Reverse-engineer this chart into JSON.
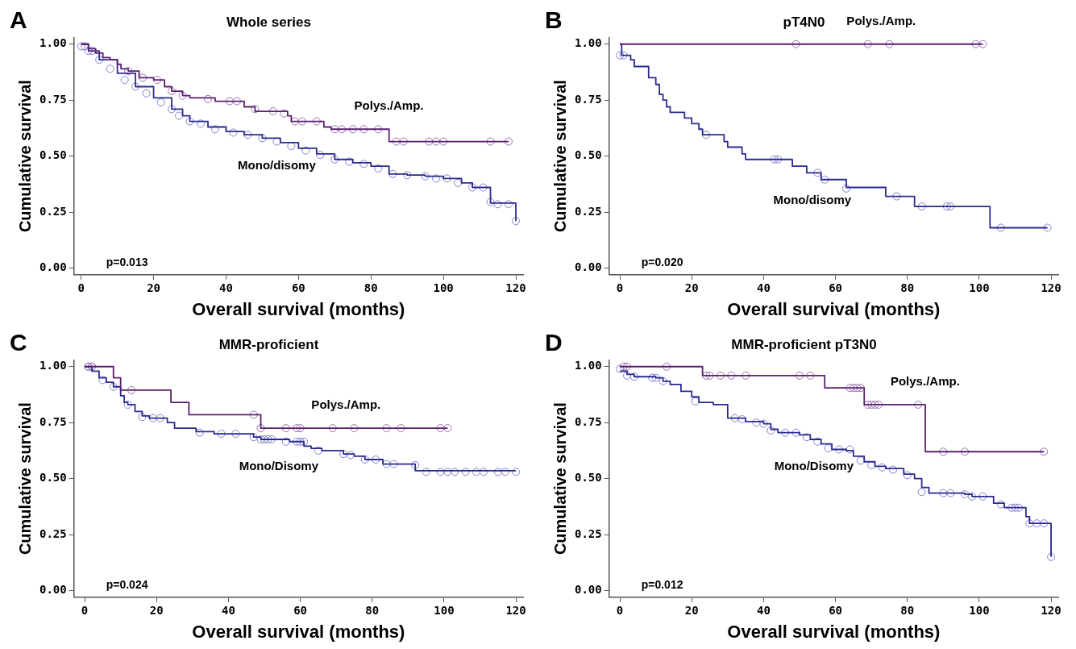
{
  "chart_data": [
    {
      "type": "step",
      "title": "Whole series",
      "xlabel": "Overall survival (months)",
      "ylabel": "Cumulative survival",
      "xlim": [
        -2,
        122
      ],
      "xticks": [
        0,
        20,
        40,
        60,
        80,
        100,
        120
      ],
      "ylim": [
        -0.03,
        1.03
      ],
      "yticks": [
        {
          "value": 0,
          "label": "0.00"
        },
        {
          "value": 0.25,
          "label": "0.25"
        },
        {
          "value": 0.5,
          "label": "0.50"
        },
        {
          "value": 0.75,
          "label": "0.75"
        },
        {
          "value": 1,
          "label": "1.00"
        }
      ],
      "grid": false,
      "legend": false,
      "marker": "none",
      "line_style": "solid",
      "annotations": [
        "A",
        "p=0.013"
      ],
      "series": [
        {
          "name": "Polys./Amp.",
          "color": "#5a2070",
          "x": [
            0,
            2,
            4,
            6,
            8,
            10,
            11,
            13,
            16,
            20,
            23,
            25,
            28,
            30,
            37,
            45,
            48,
            57,
            58,
            67,
            69,
            85,
            118
          ],
          "values": [
            1,
            0.98,
            0.96,
            0.94,
            0.93,
            0.91,
            0.89,
            0.88,
            0.85,
            0.84,
            0.81,
            0.79,
            0.77,
            0.76,
            0.745,
            0.72,
            0.7,
            0.68,
            0.655,
            0.63,
            0.62,
            0.565,
            0.565
          ]
        },
        {
          "name": "Mono/disomy",
          "color": "#2a2a90",
          "x": [
            0,
            2,
            5,
            10,
            15,
            20,
            25,
            28,
            30,
            35,
            40,
            45,
            50,
            55,
            60,
            65,
            70,
            75,
            80,
            85,
            90,
            95,
            100,
            105,
            108,
            113,
            120
          ],
          "values": [
            1,
            0.97,
            0.93,
            0.87,
            0.81,
            0.76,
            0.71,
            0.68,
            0.655,
            0.63,
            0.61,
            0.595,
            0.58,
            0.56,
            0.535,
            0.51,
            0.485,
            0.47,
            0.455,
            0.42,
            0.415,
            0.41,
            0.4,
            0.38,
            0.36,
            0.29,
            0.21
          ]
        },
        {
          "type": "scatter",
          "marker": "circle",
          "color": "#9a70b0",
          "x": [
            1,
            3,
            13,
            17,
            21,
            25,
            28,
            35,
            41,
            43,
            48,
            53,
            56,
            59,
            61,
            65,
            70,
            72,
            75,
            78,
            82,
            87,
            89,
            96,
            98,
            100,
            113,
            118
          ],
          "values": [
            0.99,
            0.97,
            0.88,
            0.85,
            0.84,
            0.79,
            0.77,
            0.755,
            0.745,
            0.745,
            0.71,
            0.7,
            0.69,
            0.655,
            0.655,
            0.655,
            0.62,
            0.62,
            0.62,
            0.62,
            0.62,
            0.565,
            0.565,
            0.565,
            0.565,
            0.565,
            0.565,
            0.565
          ]
        },
        {
          "type": "scatter",
          "marker": "circle",
          "color": "#8080d0",
          "x": [
            0,
            2,
            5,
            8,
            12,
            15,
            18,
            22,
            25,
            27,
            30,
            33,
            37,
            42,
            46,
            50,
            54,
            58,
            62,
            66,
            70,
            74,
            78,
            82,
            86,
            90,
            95,
            98,
            101,
            104,
            108,
            111,
            113,
            115,
            118,
            120
          ],
          "values": [
            0.99,
            0.97,
            0.93,
            0.89,
            0.84,
            0.81,
            0.78,
            0.74,
            0.71,
            0.68,
            0.655,
            0.645,
            0.62,
            0.605,
            0.595,
            0.58,
            0.565,
            0.545,
            0.525,
            0.505,
            0.485,
            0.475,
            0.465,
            0.445,
            0.42,
            0.415,
            0.41,
            0.4,
            0.4,
            0.38,
            0.36,
            0.36,
            0.295,
            0.285,
            0.285,
            0.21
          ]
        }
      ]
    },
    {
      "type": "step",
      "title": "pT4N0",
      "xlabel": "Overall survival (months)",
      "ylabel": "Cumulative survival",
      "xlim": [
        -3,
        122
      ],
      "xticks": [
        0,
        20,
        40,
        60,
        80,
        100,
        120
      ],
      "ylim": [
        -0.03,
        1.03
      ],
      "yticks": [
        {
          "value": 0,
          "label": "0.00"
        },
        {
          "value": 0.25,
          "label": "0.25"
        },
        {
          "value": 0.5,
          "label": "0.50"
        },
        {
          "value": 0.75,
          "label": "0.75"
        },
        {
          "value": 1,
          "label": "1.00"
        }
      ],
      "grid": false,
      "legend": false,
      "marker": "none",
      "line_style": "solid",
      "annotations": [
        "B",
        "p=0.020"
      ],
      "series": [
        {
          "name": "Polys./Amp.",
          "color": "#5a2070",
          "x": [
            0,
            101
          ],
          "values": [
            1,
            1
          ]
        },
        {
          "name": "Mono/disomy",
          "color": "#2a2a90",
          "x": [
            0,
            0.5,
            3,
            4,
            8,
            10,
            11,
            12,
            13,
            14,
            18,
            20,
            22,
            23,
            29,
            30,
            34,
            35,
            48,
            52,
            56,
            63,
            74,
            82,
            103,
            119
          ],
          "values": [
            1,
            0.95,
            0.93,
            0.9,
            0.85,
            0.82,
            0.775,
            0.75,
            0.72,
            0.695,
            0.67,
            0.645,
            0.62,
            0.595,
            0.565,
            0.54,
            0.51,
            0.485,
            0.455,
            0.425,
            0.395,
            0.36,
            0.32,
            0.275,
            0.18,
            0.18
          ]
        },
        {
          "type": "scatter",
          "marker": "circle",
          "color": "#9a70b0",
          "x": [
            49,
            69,
            75,
            99,
            101
          ],
          "values": [
            1,
            1,
            1,
            1,
            1
          ]
        },
        {
          "type": "scatter",
          "marker": "circle",
          "color": "#8080d0",
          "x": [
            0,
            1,
            24,
            43,
            44,
            55,
            57,
            63,
            77,
            84,
            91,
            92,
            106,
            119
          ],
          "values": [
            0.95,
            0.95,
            0.595,
            0.485,
            0.485,
            0.425,
            0.395,
            0.355,
            0.32,
            0.275,
            0.275,
            0.275,
            0.18,
            0.18
          ]
        }
      ]
    },
    {
      "type": "step",
      "title": "MMR-proficient",
      "xlabel": "Overall survival (months)",
      "ylabel": "Cumulative survival",
      "xlim": [
        -3,
        122
      ],
      "xticks": [
        0,
        20,
        40,
        60,
        80,
        100,
        120
      ],
      "ylim": [
        -0.03,
        1.03
      ],
      "yticks": [
        {
          "value": 0,
          "label": "0.00"
        },
        {
          "value": 0.25,
          "label": "0.25"
        },
        {
          "value": 0.5,
          "label": "0.50"
        },
        {
          "value": 0.75,
          "label": "0.75"
        },
        {
          "value": 1,
          "label": "1.00"
        }
      ],
      "grid": false,
      "legend": false,
      "marker": "none",
      "line_style": "solid",
      "annotations": [
        "C",
        "p=0.024"
      ],
      "series": [
        {
          "name": "Polys./Amp.",
          "color": "#5a2070",
          "x": [
            0,
            8,
            10,
            24,
            29,
            49,
            101
          ],
          "values": [
            1,
            0.95,
            0.895,
            0.84,
            0.785,
            0.725,
            0.725
          ]
        },
        {
          "name": "Mono/Disomy",
          "color": "#2a2a90",
          "x": [
            0,
            2,
            4,
            6,
            8,
            10,
            11,
            12,
            14,
            16,
            18,
            23,
            25,
            31,
            36,
            47,
            49,
            57,
            61,
            63,
            66,
            72,
            75,
            78,
            83,
            92,
            120
          ],
          "values": [
            1,
            0.98,
            0.95,
            0.93,
            0.91,
            0.87,
            0.84,
            0.83,
            0.8,
            0.78,
            0.77,
            0.75,
            0.725,
            0.71,
            0.7,
            0.685,
            0.675,
            0.665,
            0.645,
            0.635,
            0.625,
            0.61,
            0.6,
            0.585,
            0.565,
            0.535,
            0.535
          ]
        },
        {
          "type": "scatter",
          "marker": "circle",
          "color": "#9a70b0",
          "x": [
            1,
            2,
            13,
            47,
            49,
            56,
            59,
            60,
            69,
            75,
            84,
            88,
            99,
            101
          ],
          "values": [
            1,
            1,
            0.895,
            0.785,
            0.725,
            0.725,
            0.725,
            0.725,
            0.725,
            0.725,
            0.725,
            0.725,
            0.725,
            0.725
          ]
        },
        {
          "type": "scatter",
          "marker": "circle",
          "color": "#8080d0",
          "x": [
            1,
            2,
            5,
            8,
            12,
            16,
            19,
            21,
            32,
            38,
            42,
            47,
            49,
            50,
            51,
            52,
            56,
            59,
            60,
            61,
            65,
            72,
            74,
            78,
            81,
            84,
            86,
            92,
            95,
            99,
            101,
            103,
            106,
            109,
            111,
            115,
            117,
            120
          ],
          "values": [
            1,
            1,
            0.94,
            0.91,
            0.83,
            0.775,
            0.77,
            0.77,
            0.705,
            0.7,
            0.7,
            0.685,
            0.675,
            0.675,
            0.675,
            0.675,
            0.665,
            0.665,
            0.665,
            0.665,
            0.625,
            0.61,
            0.605,
            0.585,
            0.585,
            0.565,
            0.565,
            0.56,
            0.53,
            0.53,
            0.53,
            0.53,
            0.53,
            0.53,
            0.53,
            0.53,
            0.53,
            0.53
          ]
        }
      ]
    },
    {
      "type": "step",
      "title": "MMR-proficient pT3N0",
      "xlabel": "Overall survival (months)",
      "ylabel": "Cumulative survival",
      "xlim": [
        -3,
        122
      ],
      "xticks": [
        0,
        20,
        40,
        60,
        80,
        100,
        120
      ],
      "ylim": [
        -0.03,
        1.03
      ],
      "yticks": [
        {
          "value": 0,
          "label": "0.00"
        },
        {
          "value": 0.25,
          "label": "0.25"
        },
        {
          "value": 0.5,
          "label": "0.50"
        },
        {
          "value": 0.75,
          "label": "0.75"
        },
        {
          "value": 1,
          "label": "1.00"
        }
      ],
      "grid": false,
      "legend": false,
      "marker": "none",
      "line_style": "solid",
      "annotations": [
        "D",
        "p=0.012"
      ],
      "series": [
        {
          "name": "Polys./Amp.",
          "color": "#5a2070",
          "x": [
            0,
            23,
            57,
            68,
            85,
            118
          ],
          "values": [
            1,
            0.96,
            0.905,
            0.83,
            0.62,
            0.62
          ]
        },
        {
          "name": "Mono/Disomy",
          "color": "#2a2a90",
          "x": [
            0,
            2,
            4,
            10,
            12,
            14,
            17,
            20,
            22,
            26,
            30,
            35,
            40,
            42,
            44,
            50,
            53,
            56,
            59,
            63,
            65,
            68,
            71,
            74,
            79,
            82,
            84,
            86,
            96,
            98,
            104,
            107,
            113,
            114,
            120
          ],
          "values": [
            0.98,
            0.965,
            0.955,
            0.95,
            0.935,
            0.92,
            0.89,
            0.865,
            0.84,
            0.83,
            0.77,
            0.755,
            0.745,
            0.72,
            0.705,
            0.695,
            0.675,
            0.655,
            0.63,
            0.625,
            0.6,
            0.575,
            0.555,
            0.545,
            0.52,
            0.5,
            0.46,
            0.435,
            0.43,
            0.42,
            0.39,
            0.37,
            0.33,
            0.3,
            0.15
          ]
        },
        {
          "type": "scatter",
          "marker": "circle",
          "color": "#9a70b0",
          "x": [
            1,
            2,
            13,
            24,
            25,
            28,
            31,
            35,
            50,
            53,
            64,
            65,
            66,
            67,
            69,
            70,
            71,
            72,
            83,
            90,
            96,
            118
          ],
          "values": [
            1,
            1,
            1,
            0.96,
            0.96,
            0.96,
            0.96,
            0.96,
            0.96,
            0.96,
            0.905,
            0.905,
            0.905,
            0.905,
            0.83,
            0.83,
            0.83,
            0.83,
            0.83,
            0.62,
            0.62,
            0.62
          ]
        },
        {
          "type": "scatter",
          "marker": "circle",
          "color": "#8080d0",
          "x": [
            0,
            2,
            4,
            9,
            10,
            12,
            21,
            32,
            34,
            38,
            40,
            42,
            46,
            49,
            52,
            55,
            58,
            61,
            64,
            67,
            70,
            73,
            76,
            80,
            84,
            90,
            92,
            96,
            98,
            101,
            106,
            109,
            110,
            111,
            114,
            116,
            118,
            120
          ],
          "values": [
            0.99,
            0.96,
            0.955,
            0.95,
            0.95,
            0.935,
            0.845,
            0.77,
            0.765,
            0.75,
            0.745,
            0.715,
            0.705,
            0.705,
            0.685,
            0.665,
            0.635,
            0.63,
            0.63,
            0.58,
            0.56,
            0.55,
            0.54,
            0.515,
            0.44,
            0.435,
            0.435,
            0.43,
            0.42,
            0.42,
            0.385,
            0.37,
            0.37,
            0.37,
            0.3,
            0.3,
            0.3,
            0.15
          ]
        }
      ]
    }
  ]
}
